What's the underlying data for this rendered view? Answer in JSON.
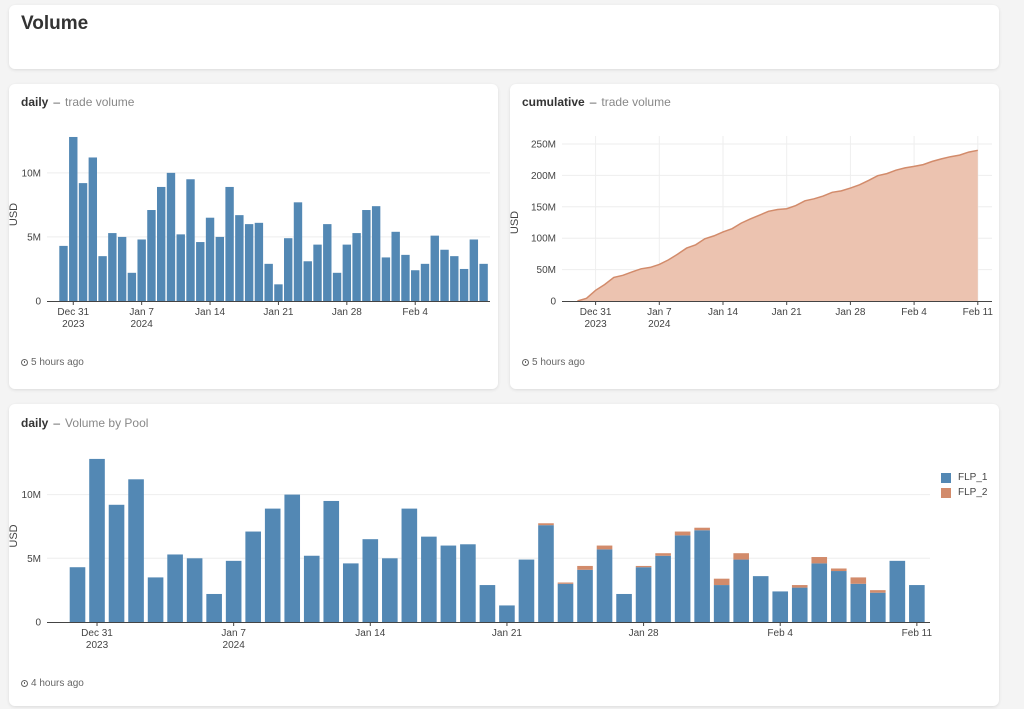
{
  "page": {
    "title": "Volume"
  },
  "colors": {
    "blue": "#5388b4",
    "orange": "#d28b6b",
    "area_fill": "#ecc3b0",
    "area_line": "#d28b6b"
  },
  "cards": [
    {
      "period": "daily",
      "metric": "trade volume",
      "updated": "5 hours ago"
    },
    {
      "period": "cumulative",
      "metric": "trade volume",
      "updated": "5 hours ago"
    },
    {
      "period": "daily",
      "metric": "Volume by Pool",
      "updated": "4 hours ago"
    }
  ],
  "chart_data": [
    {
      "type": "bar",
      "ylabel": "USD",
      "ylim": [
        0,
        13500000
      ],
      "yticks": [
        "0",
        "5M",
        "10M"
      ],
      "yticks_values": [
        0,
        5000000,
        10000000
      ],
      "x_start": "2023-12-30",
      "categories": [
        "2023-12-30",
        "2023-12-31",
        "2024-01-01",
        "2024-01-02",
        "2024-01-03",
        "2024-01-04",
        "2024-01-05",
        "2024-01-06",
        "2024-01-07",
        "2024-01-08",
        "2024-01-09",
        "2024-01-10",
        "2024-01-11",
        "2024-01-12",
        "2024-01-13",
        "2024-01-14",
        "2024-01-15",
        "2024-01-16",
        "2024-01-17",
        "2024-01-18",
        "2024-01-19",
        "2024-01-20",
        "2024-01-21",
        "2024-01-22",
        "2024-01-23",
        "2024-01-24",
        "2024-01-25",
        "2024-01-26",
        "2024-01-27",
        "2024-01-28",
        "2024-01-29",
        "2024-01-30",
        "2024-01-31",
        "2024-02-01",
        "2024-02-02",
        "2024-02-03",
        "2024-02-04",
        "2024-02-05",
        "2024-02-06",
        "2024-02-07",
        "2024-02-08",
        "2024-02-09",
        "2024-02-10",
        "2024-02-11"
      ],
      "xticks": [
        {
          "date": "2023-12-31",
          "label": "Dec 31",
          "sub": "2023"
        },
        {
          "date": "2024-01-07",
          "label": "Jan 7",
          "sub": "2024"
        },
        {
          "date": "2024-01-14",
          "label": "Jan 14",
          "sub": ""
        },
        {
          "date": "2024-01-21",
          "label": "Jan 21",
          "sub": ""
        },
        {
          "date": "2024-01-28",
          "label": "Jan 28",
          "sub": ""
        },
        {
          "date": "2024-02-04",
          "label": "Feb 4",
          "sub": ""
        }
      ],
      "series": [
        {
          "values": [
            4300000,
            12800000,
            9200000,
            11200000,
            3500000,
            5300000,
            5000000,
            2200000,
            4800000,
            7100000,
            8900000,
            10000000,
            5200000,
            9500000,
            4600000,
            6500000,
            5000000,
            8900000,
            6700000,
            6000000,
            6100000,
            2900000,
            1300000,
            4900000,
            7700000,
            3100000,
            4400000,
            6000000,
            2200000,
            4400000,
            5300000,
            7100000,
            7400000,
            3400000,
            5400000,
            3600000,
            2400000,
            2900000,
            5100000,
            4000000,
            3500000,
            2500000,
            4800000,
            2900000
          ]
        }
      ]
    },
    {
      "type": "area",
      "ylabel": "USD",
      "ylim": [
        0,
        250000000
      ],
      "yticks": [
        "0",
        "50M",
        "100M",
        "150M",
        "200M",
        "250M"
      ],
      "yticks_values": [
        0,
        50000000,
        100000000,
        150000000,
        200000000,
        250000000
      ],
      "xticks": [
        {
          "date": "2023-12-31",
          "label": "Dec 31",
          "sub": "2023"
        },
        {
          "date": "2024-01-07",
          "label": "Jan 7",
          "sub": "2024"
        },
        {
          "date": "2024-01-14",
          "label": "Jan 14",
          "sub": ""
        },
        {
          "date": "2024-01-21",
          "label": "Jan 21",
          "sub": ""
        },
        {
          "date": "2024-01-28",
          "label": "Jan 28",
          "sub": ""
        },
        {
          "date": "2024-02-04",
          "label": "Feb 4",
          "sub": ""
        },
        {
          "date": "2024-02-11",
          "label": "Feb 11",
          "sub": ""
        }
      ]
    },
    {
      "type": "bar",
      "stacked": true,
      "ylabel": "USD",
      "ylim": [
        0,
        13500000
      ],
      "yticks": [
        "0",
        "5M",
        "10M"
      ],
      "yticks_values": [
        0,
        5000000,
        10000000
      ],
      "legend_position": "top-right",
      "xticks": [
        {
          "date": "2023-12-31",
          "label": "Dec 31",
          "sub": "2023"
        },
        {
          "date": "2024-01-07",
          "label": "Jan 7",
          "sub": "2024"
        },
        {
          "date": "2024-01-14",
          "label": "Jan 14",
          "sub": ""
        },
        {
          "date": "2024-01-21",
          "label": "Jan 21",
          "sub": ""
        },
        {
          "date": "2024-01-28",
          "label": "Jan 28",
          "sub": ""
        },
        {
          "date": "2024-02-04",
          "label": "Feb 4",
          "sub": ""
        },
        {
          "date": "2024-02-11",
          "label": "Feb 11",
          "sub": ""
        }
      ],
      "series": [
        {
          "name": "FLP_1",
          "values": [
            4300000,
            12800000,
            9200000,
            11200000,
            3500000,
            5300000,
            5000000,
            2200000,
            4800000,
            7100000,
            8900000,
            10000000,
            5200000,
            9500000,
            4600000,
            6500000,
            5000000,
            8900000,
            6700000,
            6000000,
            6100000,
            2900000,
            1300000,
            4900000,
            7600000,
            3000000,
            4100000,
            5700000,
            2200000,
            4300000,
            5200000,
            6800000,
            7200000,
            2900000,
            4900000,
            3600000,
            2400000,
            2700000,
            4600000,
            4000000,
            3000000,
            2300000,
            4800000,
            2900000
          ]
        },
        {
          "name": "FLP_2",
          "values": [
            0,
            0,
            0,
            0,
            0,
            0,
            0,
            0,
            0,
            0,
            0,
            0,
            0,
            0,
            0,
            0,
            0,
            0,
            0,
            0,
            0,
            0,
            0,
            0,
            150000,
            100000,
            300000,
            300000,
            0,
            100000,
            200000,
            300000,
            200000,
            500000,
            500000,
            0,
            0,
            200000,
            500000,
            200000,
            500000,
            200000,
            0,
            0
          ]
        }
      ]
    }
  ]
}
